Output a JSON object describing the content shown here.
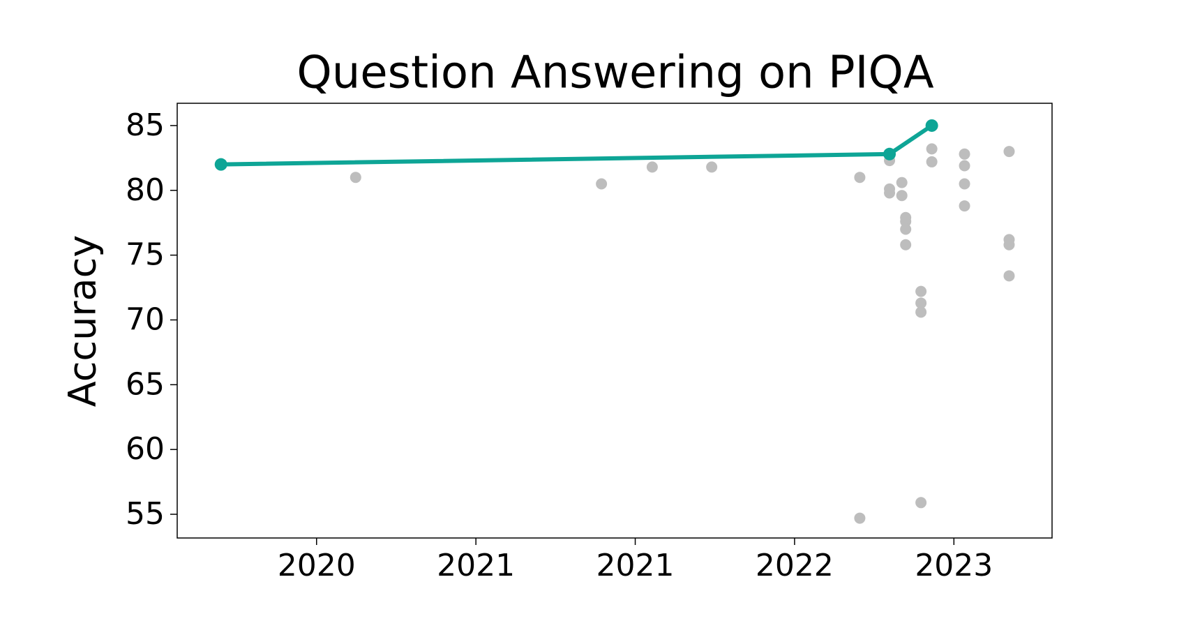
{
  "chart_data": {
    "type": "scatter",
    "title": "Question Answering on PIQA",
    "y_label": "Accuracy",
    "xlim": [
      2019.594,
      2023.712
    ],
    "xticks": [
      {
        "value": 2020.25,
        "label": "2020"
      },
      {
        "value": 2021.0,
        "label": "2021"
      },
      {
        "value": 2021.75,
        "label": "2021"
      },
      {
        "value": 2022.5,
        "label": "2022"
      },
      {
        "value": 2023.25,
        "label": "2023"
      }
    ],
    "ylim": [
      53.17,
      86.72
    ],
    "yticks": [
      55,
      60,
      65,
      70,
      75,
      80,
      85
    ],
    "grid": false,
    "series": [
      {
        "style": "markers",
        "color": "#bdbdbd",
        "x": [
          2020.434,
          2021.591,
          2021.83,
          2022.11,
          2022.807,
          2022.947,
          2022.947,
          2022.947,
          2023.005,
          2023.005,
          2023.023,
          2023.023,
          2023.023,
          2023.023,
          2023.095,
          2023.095,
          2023.095,
          2023.095,
          2022.807,
          2023.146,
          2023.146,
          2023.3,
          2023.3,
          2023.3,
          2023.3,
          2023.51,
          2023.51,
          2023.51,
          2023.51
        ],
        "values": [
          81.0,
          80.5,
          81.8,
          81.8,
          81.0,
          82.3,
          80.1,
          79.8,
          80.6,
          79.6,
          77.9,
          77.6,
          77.0,
          75.8,
          72.2,
          71.3,
          70.6,
          55.9,
          54.7,
          83.2,
          82.2,
          82.8,
          81.9,
          80.5,
          78.8,
          83.0,
          76.2,
          75.8,
          73.4
        ]
      },
      {
        "style": "line-markers",
        "color": "#0ea596",
        "x": [
          2019.8,
          2022.947,
          2023.146
        ],
        "values": [
          82.0,
          82.8,
          85.0
        ]
      }
    ]
  }
}
